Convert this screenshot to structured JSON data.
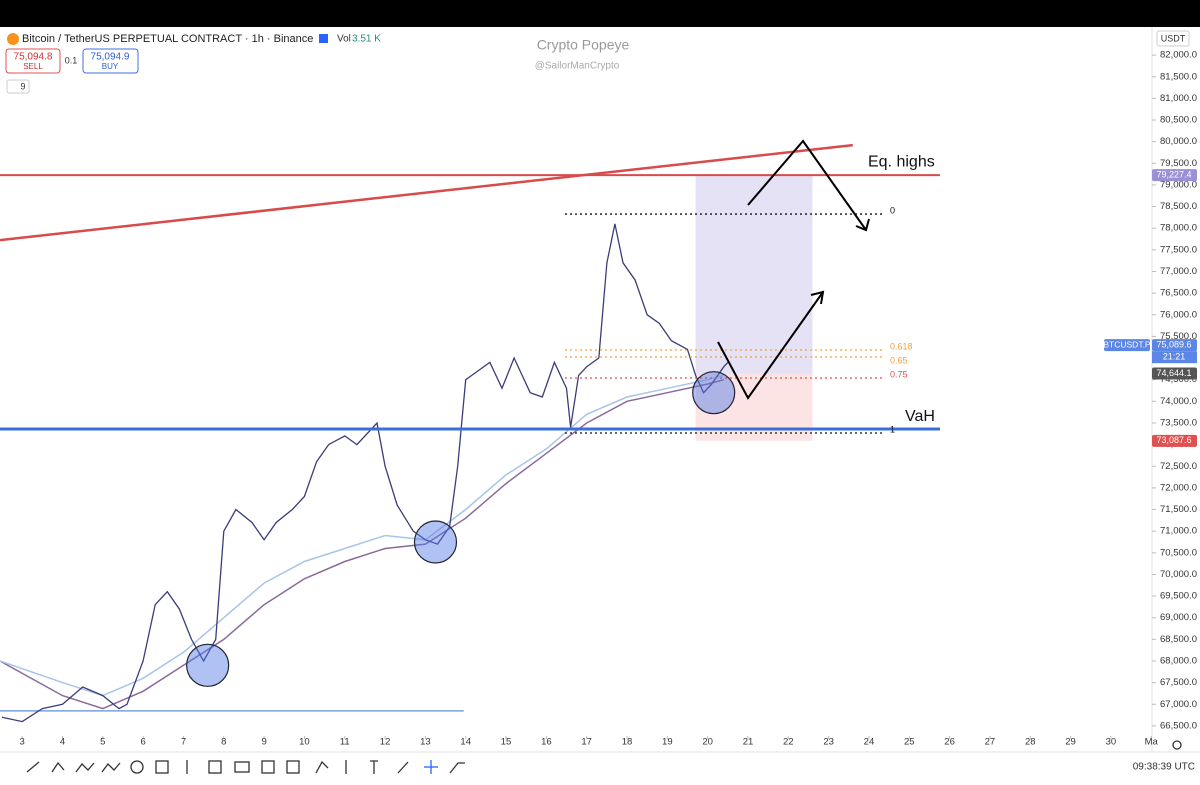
{
  "header": {
    "symbol": "Bitcoin / TetherUS PERPETUAL CONTRACT · 1h · Binance",
    "vol_label": "Vol",
    "vol_value": "3.51 K",
    "sell_price": "75,094.8",
    "sell": "SELL",
    "spread": "0.1",
    "buy_price": "75,094.9",
    "buy": "BUY",
    "indicators": "9"
  },
  "watermark": {
    "title": "Crypto Popeye",
    "handle": "@SailorManCrypto"
  },
  "currency": "USDT",
  "time": "09:38:39 UTC",
  "chart_data": {
    "type": "line",
    "xlim": [
      2.45,
      30.97
    ],
    "ylim": [
      66290,
      82580
    ],
    "xticks": [
      3,
      4,
      5,
      6,
      7,
      8,
      9,
      10,
      11,
      12,
      13,
      14,
      15,
      16,
      17,
      18,
      19,
      20,
      21,
      22,
      23,
      24,
      25,
      26,
      27,
      28,
      29,
      30,
      {
        "value": 31,
        "label": "Ma"
      }
    ],
    "yticks": [
      {
        "value": 66500,
        "label": "66,500.0"
      },
      {
        "value": 67000,
        "label": "67,000.0"
      },
      {
        "value": 67500,
        "label": "67,500.0"
      },
      {
        "value": 68000,
        "label": "68,000.0"
      },
      {
        "value": 68500,
        "label": "68,500.0"
      },
      {
        "value": 69000,
        "label": "69,000.0"
      },
      {
        "value": 69500,
        "label": "69,500.0"
      },
      {
        "value": 70000,
        "label": "70,000.0"
      },
      {
        "value": 70500,
        "label": "70,500.0"
      },
      {
        "value": 71000,
        "label": "71,000.0"
      },
      {
        "value": 71500,
        "label": "71,500.0"
      },
      {
        "value": 72000,
        "label": "72,000.0"
      },
      {
        "value": 72500,
        "label": "72,500.0"
      },
      {
        "value": 73000,
        "label": "73,000.0"
      },
      {
        "value": 73500,
        "label": "73,500.0"
      },
      {
        "value": 74000,
        "label": "74,000.0"
      },
      {
        "value": 74500,
        "label": "74,500.0"
      },
      {
        "value": 75000,
        "label": "75,000.0"
      },
      {
        "value": 75500,
        "label": "75,500.0"
      },
      {
        "value": 76000,
        "label": "76,000.0"
      },
      {
        "value": 76500,
        "label": "76,500.0"
      },
      {
        "value": 77000,
        "label": "77,000.0"
      },
      {
        "value": 77500,
        "label": "77,500.0"
      },
      {
        "value": 78000,
        "label": "78,000.0"
      },
      {
        "value": 78500,
        "label": "78,500.0"
      },
      {
        "value": 79000,
        "label": "79,000.0"
      },
      {
        "value": 79500,
        "label": "79,500.0"
      },
      {
        "value": 80000,
        "label": "80,000.0"
      },
      {
        "value": 80500,
        "label": "80,500.0"
      },
      {
        "value": 81000,
        "label": "81,000.0"
      },
      {
        "value": 81500,
        "label": "81,500.0"
      },
      {
        "value": 82000,
        "label": "82,000.0"
      }
    ],
    "series": [
      {
        "color": "#3c3c7a",
        "x": [
          2.5,
          3.0,
          3.5,
          4.0,
          4.5,
          5.0,
          5.4,
          5.6,
          6.0,
          6.3,
          6.6,
          6.9,
          7.2,
          7.5,
          7.8,
          8.0,
          8.3,
          8.7,
          9.0,
          9.3,
          9.7,
          10.0,
          10.3,
          10.6,
          11.0,
          11.3,
          11.8,
          12.0,
          12.3,
          12.7,
          13.0,
          13.3,
          13.6,
          13.8,
          14.0,
          14.3,
          14.6,
          14.9,
          15.2,
          15.6,
          15.9,
          16.2,
          16.5,
          16.6,
          16.8,
          17.0,
          17.3,
          17.5,
          17.7,
          17.9,
          18.2,
          18.5,
          18.8,
          19.1,
          19.5,
          19.7,
          19.9,
          20.1,
          20.4,
          20.5
        ],
        "values": [
          66700,
          66600,
          66900,
          67000,
          67400,
          67200,
          66900,
          67000,
          68000,
          69300,
          69600,
          69200,
          68500,
          68000,
          68500,
          71000,
          71500,
          71200,
          70800,
          71200,
          71500,
          71800,
          72600,
          73000,
          73200,
          73000,
          73500,
          72500,
          71600,
          71000,
          70800,
          70700,
          71100,
          72500,
          74500,
          74700,
          74900,
          74300,
          75000,
          74200,
          74100,
          74900,
          74300,
          73400,
          74600,
          74800,
          75000,
          77200,
          78100,
          77200,
          76800,
          76000,
          75800,
          75400,
          75200,
          74600,
          74200,
          74400,
          74800,
          74900
        ]
      },
      {
        "color": "#a8c4ea",
        "x": [
          2.45,
          4,
          5,
          6,
          7,
          8,
          9,
          10,
          11,
          12,
          13,
          14,
          15,
          16,
          17,
          18,
          19,
          20,
          20.4
        ],
        "values": [
          68000,
          67500,
          67200,
          67600,
          68200,
          69000,
          69800,
          70300,
          70600,
          70900,
          70800,
          71500,
          72300,
          72900,
          73700,
          74100,
          74300,
          74500,
          74600
        ]
      },
      {
        "color": "#8a6a9a",
        "x": [
          2.45,
          4,
          5,
          6,
          7,
          8,
          9,
          10,
          11,
          12,
          13,
          14,
          15,
          16,
          17,
          18,
          19,
          20,
          20.4
        ],
        "values": [
          68000,
          67200,
          66900,
          67300,
          67900,
          68500,
          69300,
          69900,
          70300,
          70600,
          70700,
          71300,
          72100,
          72800,
          73500,
          74000,
          74200,
          74400,
          74500
        ]
      }
    ]
  },
  "price_tags": [
    {
      "value": 79227.4,
      "label": "79,227.4"
    },
    {
      "value": 75089.6,
      "label": "75,089.6"
    },
    {
      "value": 74644.1,
      "label": "74,644.1"
    },
    {
      "value": 73087.6,
      "label": "73,087.6"
    }
  ],
  "ticker_tag": "BTCUSDT.P",
  "countdown": "21:21",
  "eq_highs": {
    "label": "Eq. highs",
    "value": 79227.4
  },
  "vah": {
    "label": "VaH",
    "value": 73361
  },
  "trendline": {
    "x": [
      2.45,
      23.6
    ],
    "values": [
      77726,
      79921
    ]
  },
  "support": {
    "x": [
      2.45,
      13.95
    ],
    "values": [
      66846,
      66846
    ]
  },
  "fib": [
    {
      "value": 78327,
      "label": "0"
    },
    {
      "value": 75186,
      "label": "0.618"
    },
    {
      "value": 75024,
      "label": "0.65"
    },
    {
      "value": 74539,
      "label": "0.75"
    },
    {
      "value": 73268,
      "label": "1"
    }
  ],
  "position_x": [
    19.7,
    22.6
  ],
  "circles": [
    {
      "x": 7.6,
      "y": 67900
    },
    {
      "x": 13.25,
      "y": 70750
    },
    {
      "x": 20.15,
      "y": 74200
    }
  ]
}
